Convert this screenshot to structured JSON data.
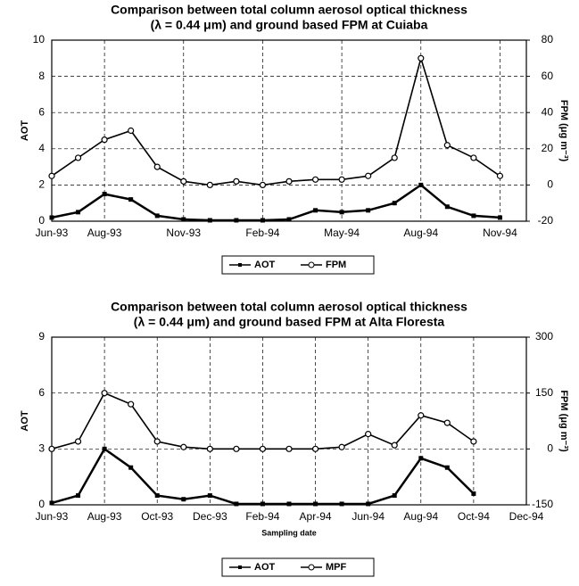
{
  "chart_data": [
    {
      "type": "line",
      "title": [
        "Comparison between total column aerosol optical thickness",
        "(λ = 0.44 μm) and ground based FPM at Cuiaba"
      ],
      "ylabel": "AOT",
      "y2label": "FPM (μg m⁻³)",
      "x": [
        "1993-06",
        "1993-07",
        "1993-08",
        "1993-09",
        "1993-10",
        "1993-11",
        "1993-12",
        "1994-01",
        "1994-02",
        "1994-03",
        "1994-04",
        "1994-05",
        "1994-06",
        "1994-07",
        "1994-08",
        "1994-09",
        "1994-10",
        "1994-11"
      ],
      "series": [
        {
          "name": "AOT",
          "color": "#000000",
          "axis": "y",
          "marker": "square",
          "values": [
            0.2,
            0.5,
            1.5,
            1.2,
            0.3,
            0.1,
            0.05,
            0.05,
            0.05,
            0.1,
            0.6,
            0.5,
            0.6,
            1.0,
            2.0,
            0.8,
            0.3,
            0.2
          ]
        },
        {
          "name": "FPM",
          "color": "#000000",
          "axis": "y2",
          "marker": "circle",
          "values": [
            5,
            15,
            25,
            30,
            10,
            2,
            0,
            2,
            0,
            2,
            3,
            3,
            5,
            15,
            70,
            22,
            15,
            5
          ]
        }
      ],
      "xlim": [
        "1993-06",
        "1994-12"
      ],
      "xticks": [
        {
          "value": "1993-06",
          "label": "Jun-93"
        },
        {
          "value": "1993-08",
          "label": "Aug-93"
        },
        {
          "value": "1993-11",
          "label": "Nov-93"
        },
        {
          "value": "1994-02",
          "label": "Feb-94"
        },
        {
          "value": "1994-05",
          "label": "May-94"
        },
        {
          "value": "1994-08",
          "label": "Aug-94"
        },
        {
          "value": "1994-11",
          "label": "Nov-94"
        }
      ],
      "ylim": [
        0,
        10
      ],
      "yticks": [
        0,
        2,
        4,
        6,
        8,
        10
      ],
      "y2lim": [
        -20,
        80
      ],
      "y2ticks": [
        -20,
        0,
        20,
        40,
        60,
        80
      ],
      "grid": true,
      "legend": "bottom"
    },
    {
      "type": "line",
      "title": [
        "Comparison between total column aerosol optical thickness",
        "(λ = 0.44 μm) and ground based FPM at Alta Floresta"
      ],
      "ylabel": "AOT",
      "y2label": "FPM (μg m⁻³)",
      "xlabel": "Sampling date",
      "x": [
        "1993-06",
        "1993-07",
        "1993-08",
        "1993-09",
        "1993-10",
        "1993-11",
        "1993-12",
        "1994-01",
        "1994-02",
        "1994-03",
        "1994-04",
        "1994-05",
        "1994-06",
        "1994-07",
        "1994-08",
        "1994-09",
        "1994-10"
      ],
      "series": [
        {
          "name": "AOT",
          "color": "#000000",
          "axis": "y",
          "marker": "square",
          "values": [
            0.1,
            0.5,
            3,
            2,
            0.5,
            0.3,
            0.5,
            0.05,
            0.05,
            0.05,
            0.05,
            0.05,
            0.05,
            0.5,
            2.5,
            2.0,
            0.6
          ]
        },
        {
          "name": "MPF",
          "color": "#000000",
          "axis": "y2",
          "marker": "circle",
          "values": [
            0,
            20,
            150,
            120,
            20,
            5,
            0,
            0,
            0,
            0,
            0,
            5,
            40,
            10,
            90,
            70,
            20
          ]
        }
      ],
      "xlim": [
        "1993-06",
        "1994-12"
      ],
      "xticks": [
        {
          "value": "1993-06",
          "label": "Jun-93"
        },
        {
          "value": "1993-08",
          "label": "Aug-93"
        },
        {
          "value": "1993-10",
          "label": "Oct-93"
        },
        {
          "value": "1993-12",
          "label": "Dec-93"
        },
        {
          "value": "1994-02",
          "label": "Feb-94"
        },
        {
          "value": "1994-04",
          "label": "Apr-94"
        },
        {
          "value": "1994-06",
          "label": "Jun-94"
        },
        {
          "value": "1994-08",
          "label": "Aug-94"
        },
        {
          "value": "1994-10",
          "label": "Oct-94"
        },
        {
          "value": "1994-12",
          "label": "Dec-94"
        }
      ],
      "ylim": [
        0,
        9
      ],
      "yticks": [
        0,
        3,
        6,
        9
      ],
      "y2lim": [
        -150,
        300
      ],
      "y2ticks": [
        -150,
        0,
        150,
        300
      ],
      "grid": true,
      "legend": "bottom"
    }
  ]
}
